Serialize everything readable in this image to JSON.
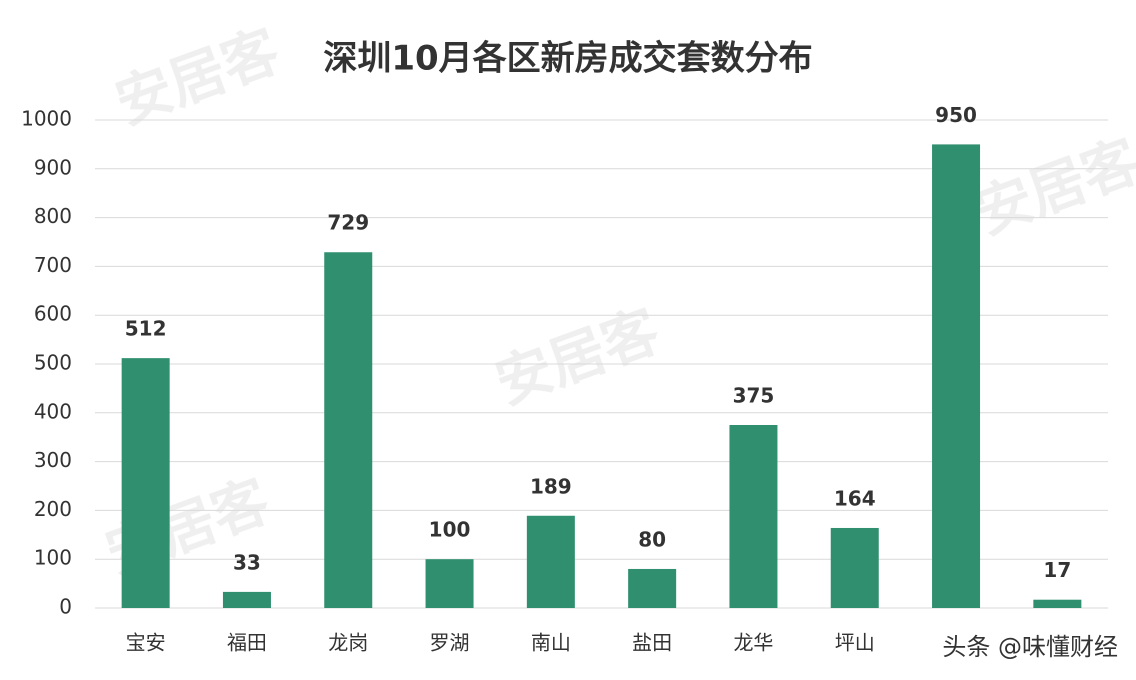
{
  "chart_data": {
    "type": "bar",
    "title": "深圳10月各区新房成交套数分布",
    "categories": [
      "宝安",
      "福田",
      "龙岗",
      "罗湖",
      "南山",
      "盐田",
      "龙华",
      "坪山",
      null,
      null
    ],
    "values": [
      512,
      33,
      729,
      100,
      189,
      80,
      375,
      164,
      950,
      17
    ],
    "color": "#2f8f6e",
    "ylim": [
      0,
      1000
    ],
    "yticks": [
      0,
      100,
      200,
      300,
      400,
      500,
      600,
      700,
      800,
      900,
      1000
    ],
    "grid": true,
    "watermark": "安居客",
    "credit": "头条 @味懂财经"
  }
}
